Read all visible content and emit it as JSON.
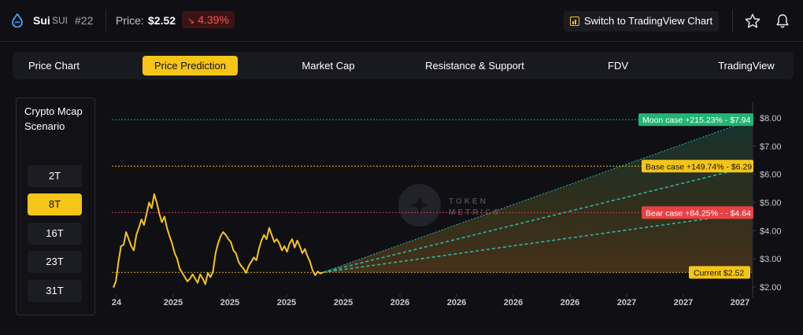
{
  "header": {
    "coin_name": "Sui",
    "coin_symbol": "SUI",
    "rank": "#22",
    "price_label": "Price:",
    "price_value": "$2.52",
    "change_value": "4.39%",
    "change_direction": "down",
    "switch_button_label": "Switch to TradingView Chart",
    "icons": [
      "sui-drop-icon",
      "tradingview-chart-icon",
      "star-icon",
      "bell-icon"
    ]
  },
  "tabs": [
    {
      "label": "Price Chart",
      "active": false
    },
    {
      "label": "Price Prediction",
      "active": true
    },
    {
      "label": "Market Cap",
      "active": false
    },
    {
      "label": "Resistance & Support",
      "active": false
    },
    {
      "label": "FDV",
      "active": false
    },
    {
      "label": "TradingView",
      "active": false
    }
  ],
  "scenario_panel": {
    "title": "Crypto Mcap Scenario",
    "options": [
      {
        "label": "2T",
        "active": false
      },
      {
        "label": "8T",
        "active": true
      },
      {
        "label": "16T",
        "active": false
      },
      {
        "label": "23T",
        "active": false
      },
      {
        "label": "31T",
        "active": false
      }
    ]
  },
  "watermark": {
    "line1": "TOKEN",
    "line2": "METRICS"
  },
  "colors": {
    "accent": "#f5c518",
    "moon": "#22b573",
    "base": "#f5c518",
    "bear": "#e94043",
    "negative": "#ff4d4f",
    "projection": "#2fb5a5"
  },
  "chart_data": {
    "type": "line",
    "y_ticks": [
      "$8.00",
      "$7.00",
      "$6.00",
      "$5.00",
      "$4.00",
      "$3.00",
      "$2.00"
    ],
    "ylim": [
      1.85,
      8.5
    ],
    "x_tick_labels": [
      "24",
      "2025",
      "2025",
      "2025",
      "2025",
      "2026",
      "2026",
      "2026",
      "2026",
      "2027",
      "2027",
      "2027"
    ],
    "current_price": 2.52,
    "scenarios": [
      {
        "name": "Moon case",
        "change": "+215.23%",
        "price": 7.94,
        "label": "Moon case +215.23% - $7.94"
      },
      {
        "name": "Base case",
        "change": "+149.74%",
        "price": 6.29,
        "label": "Base case +149.74% - $6.29"
      },
      {
        "name": "Bear case",
        "change": "+84.25%",
        "price": 4.64,
        "label": "Bear case +84.25% - - $4.64"
      }
    ],
    "current_label": "Current $2.52",
    "history": [
      1.98,
      2.2,
      2.9,
      3.45,
      3.5,
      3.95,
      3.7,
      3.45,
      3.3,
      3.85,
      4.1,
      4.4,
      4.2,
      4.6,
      5.0,
      4.8,
      5.3,
      5.0,
      4.6,
      4.3,
      4.5,
      4.1,
      3.8,
      3.55,
      3.2,
      3.0,
      2.65,
      2.5,
      2.35,
      2.2,
      2.3,
      2.45,
      2.3,
      2.15,
      2.45,
      2.3,
      2.1,
      2.5,
      2.35,
      2.55,
      3.2,
      3.55,
      3.8,
      3.95,
      3.85,
      3.7,
      3.6,
      3.3,
      3.2,
      2.9,
      2.75,
      2.65,
      2.5,
      2.75,
      2.9,
      3.05,
      2.95,
      3.35,
      3.65,
      3.85,
      3.7,
      4.1,
      3.85,
      3.6,
      3.7,
      3.55,
      3.3,
      3.45,
      3.25,
      3.55,
      3.7,
      3.4,
      3.65,
      3.45,
      3.2,
      3.35,
      3.1,
      2.9,
      2.6,
      2.42,
      2.55,
      2.48,
      2.52
    ]
  }
}
